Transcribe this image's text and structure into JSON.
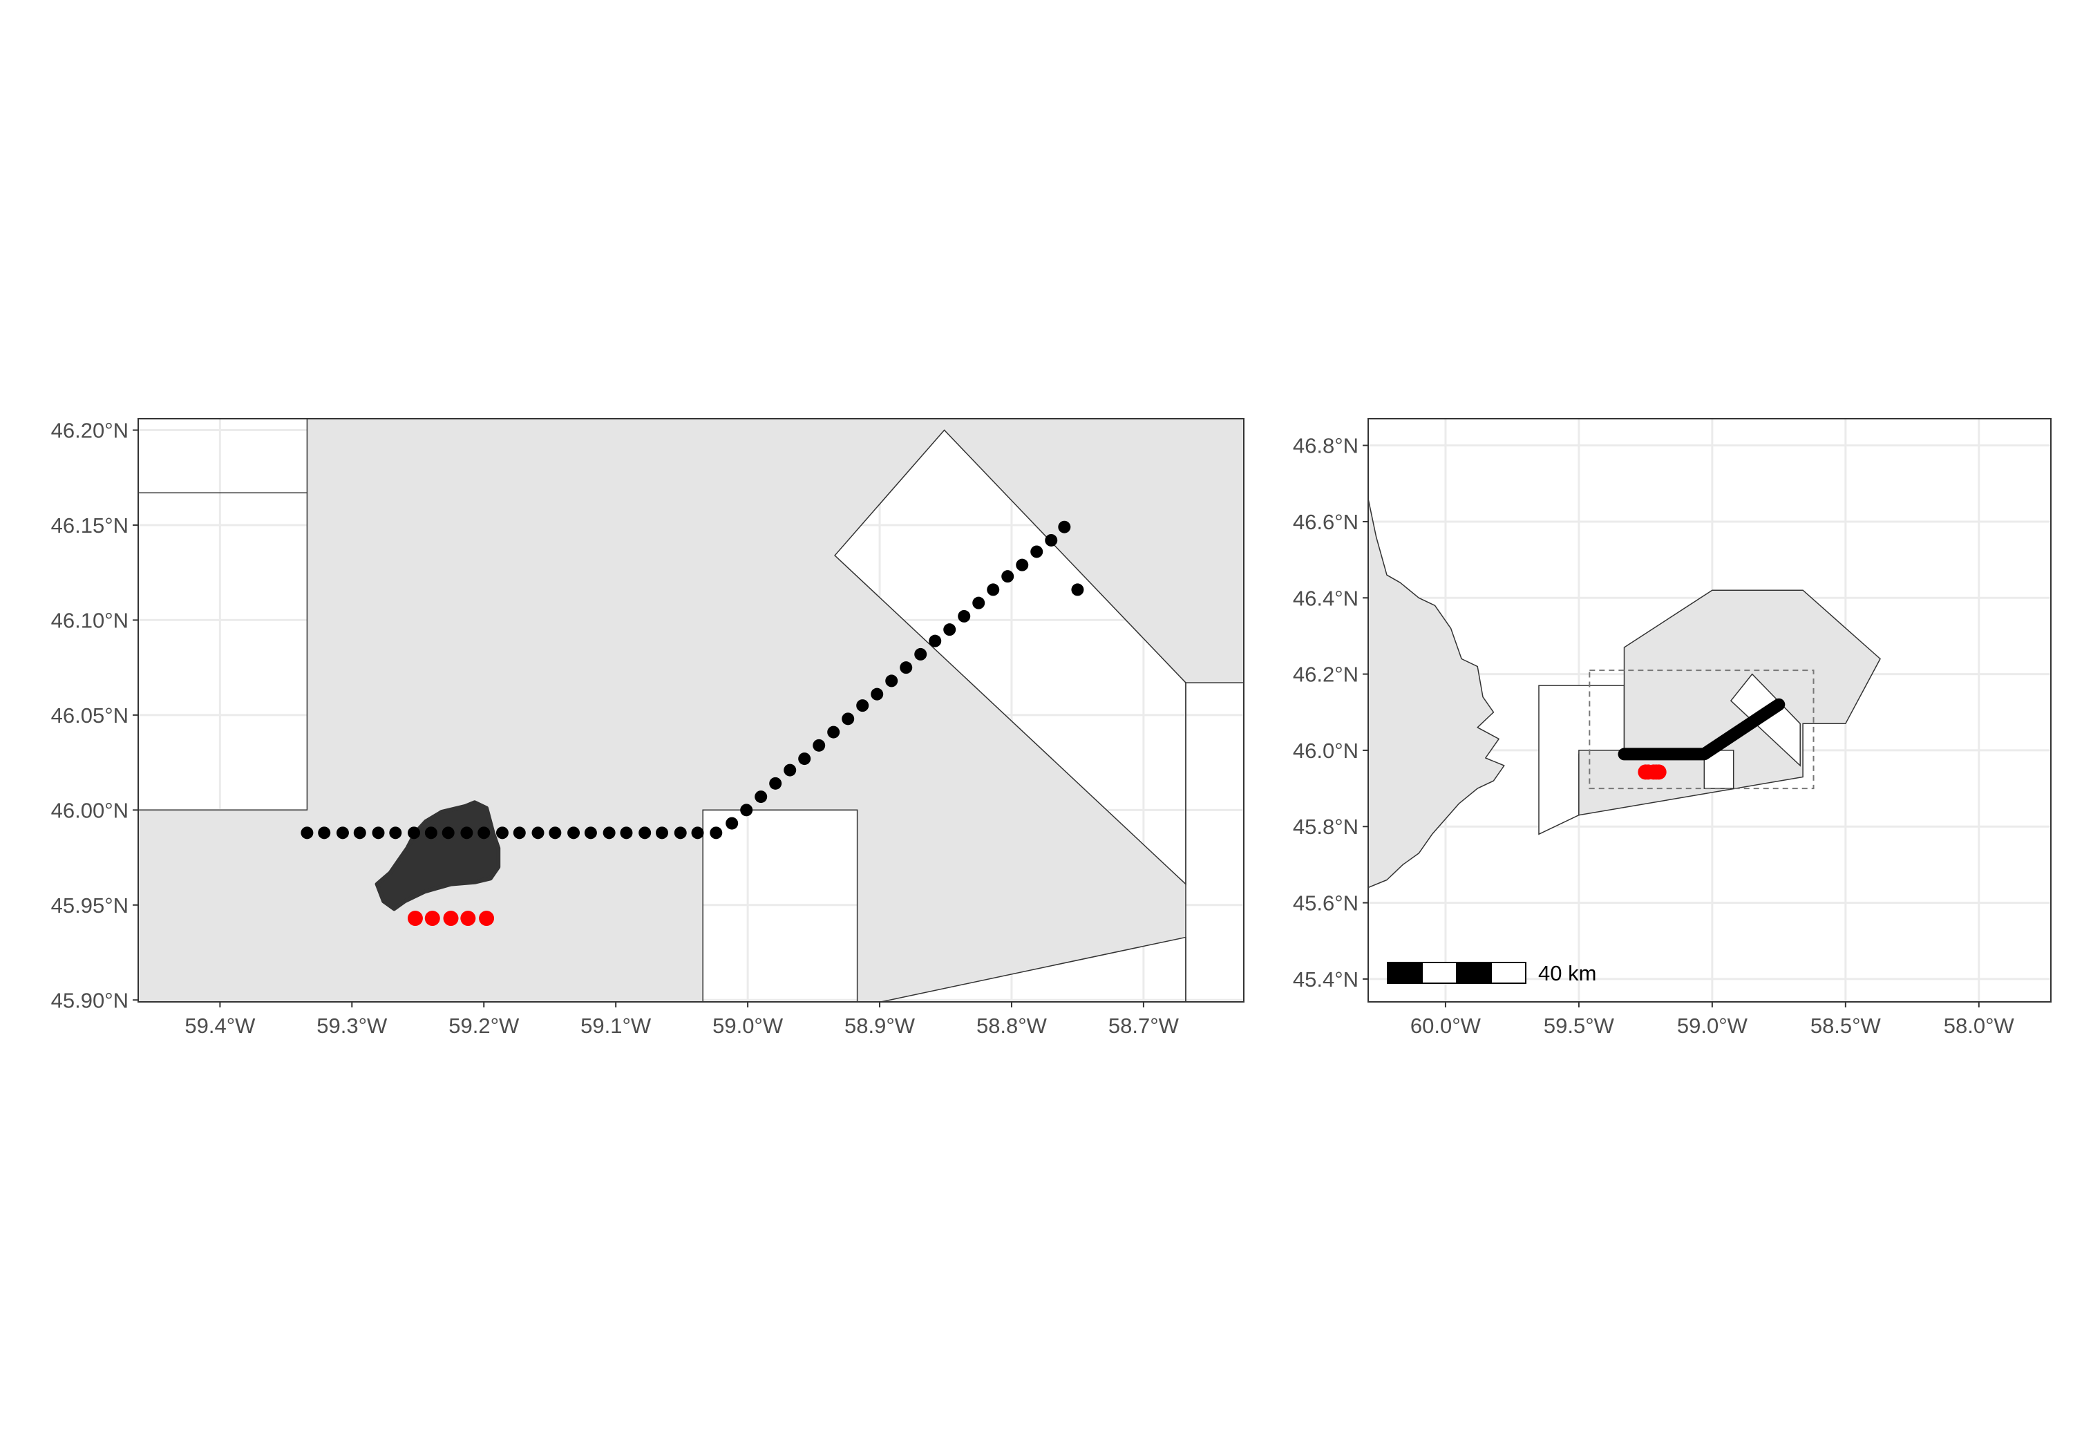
{
  "left_map": {
    "x_tick_labels": [
      "59.4°W",
      "59.3°W",
      "59.2°W",
      "59.1°W",
      "59.0°W",
      "58.9°W",
      "58.8°W",
      "58.7°W"
    ],
    "y_tick_labels": [
      "46.20°N",
      "46.15°N",
      "46.10°N",
      "46.05°N",
      "46.00°N",
      "45.95°N",
      "45.90°N"
    ],
    "lon_range": [
      -59.462,
      -58.624
    ],
    "lat_range": [
      45.899,
      46.206
    ],
    "x_ticks": [
      -59.4,
      -59.3,
      -59.2,
      -59.1,
      -59.0,
      -58.9,
      -58.8,
      -58.7
    ],
    "y_ticks": [
      46.2,
      46.15,
      46.1,
      46.05,
      46.0,
      45.95,
      45.9
    ],
    "regions": [
      {
        "name": "shaded-zone",
        "fill": "#e5e5e5",
        "coords": [
          [
            -59.462,
            45.899
          ],
          [
            -59.462,
            46.206
          ],
          [
            -58.624,
            46.206
          ],
          [
            -58.624,
            45.899
          ]
        ]
      },
      {
        "name": "white-block-nw-upper",
        "fill": "#ffffff",
        "coords": [
          [
            -59.462,
            46.206
          ],
          [
            -59.334,
            46.206
          ],
          [
            -59.334,
            46.167
          ],
          [
            -59.462,
            46.167
          ]
        ]
      },
      {
        "name": "white-block-nw-lower",
        "fill": "#ffffff",
        "coords": [
          [
            -59.462,
            46.167
          ],
          [
            -59.334,
            46.167
          ],
          [
            -59.334,
            46.0
          ],
          [
            -59.462,
            46.0
          ]
        ]
      },
      {
        "name": "white-block-south",
        "fill": "#ffffff",
        "coords": [
          [
            -59.034,
            46.0
          ],
          [
            -58.917,
            46.0
          ],
          [
            -58.917,
            45.899
          ],
          [
            -59.034,
            45.899
          ]
        ]
      },
      {
        "name": "white-diamond",
        "fill": "#ffffff",
        "coords": [
          [
            -58.851,
            46.2
          ],
          [
            -58.668,
            46.067
          ],
          [
            -58.668,
            45.961
          ],
          [
            -58.934,
            46.134
          ]
        ]
      },
      {
        "name": "white-block-east",
        "fill": "#ffffff",
        "coords": [
          [
            -58.668,
            46.067
          ],
          [
            -58.624,
            46.067
          ],
          [
            -58.624,
            45.899
          ],
          [
            -58.668,
            45.899
          ]
        ]
      },
      {
        "name": "white-wedge-southeast",
        "fill": "#ffffff",
        "coords": [
          [
            -58.899,
            45.899
          ],
          [
            -58.668,
            45.933
          ],
          [
            -58.668,
            45.899
          ]
        ]
      }
    ],
    "blob": {
      "fill": "#333333",
      "coords": [
        [
          -59.207,
          46.004
        ],
        [
          -59.198,
          46.001
        ],
        [
          -59.193,
          45.988
        ],
        [
          -59.189,
          45.98
        ],
        [
          -59.189,
          45.97
        ],
        [
          -59.195,
          45.964
        ],
        [
          -59.207,
          45.962
        ],
        [
          -59.225,
          45.961
        ],
        [
          -59.245,
          45.957
        ],
        [
          -59.26,
          45.952
        ],
        [
          -59.268,
          45.948
        ],
        [
          -59.276,
          45.952
        ],
        [
          -59.281,
          45.961
        ],
        [
          -59.271,
          45.967
        ],
        [
          -59.265,
          45.973
        ],
        [
          -59.258,
          45.98
        ],
        [
          -59.252,
          45.988
        ],
        [
          -59.244,
          45.994
        ],
        [
          -59.232,
          45.999
        ],
        [
          -59.214,
          46.002
        ]
      ]
    },
    "track": {
      "color": "#000000",
      "points": [
        [
          -59.334,
          45.988
        ],
        [
          -59.321,
          45.988
        ],
        [
          -59.307,
          45.988
        ],
        [
          -59.294,
          45.988
        ],
        [
          -59.28,
          45.988
        ],
        [
          -59.267,
          45.988
        ],
        [
          -59.253,
          45.988
        ],
        [
          -59.24,
          45.988
        ],
        [
          -59.227,
          45.988
        ],
        [
          -59.213,
          45.988
        ],
        [
          -59.2,
          45.988
        ],
        [
          -59.186,
          45.988
        ],
        [
          -59.173,
          45.988
        ],
        [
          -59.159,
          45.988
        ],
        [
          -59.146,
          45.988
        ],
        [
          -59.132,
          45.988
        ],
        [
          -59.119,
          45.988
        ],
        [
          -59.105,
          45.988
        ],
        [
          -59.092,
          45.988
        ],
        [
          -59.078,
          45.988
        ],
        [
          -59.065,
          45.988
        ],
        [
          -59.051,
          45.988
        ],
        [
          -59.038,
          45.988
        ],
        [
          -59.024,
          45.988
        ],
        [
          -59.012,
          45.993
        ],
        [
          -59.001,
          46.0
        ],
        [
          -58.99,
          46.007
        ],
        [
          -58.979,
          46.014
        ],
        [
          -58.968,
          46.021
        ],
        [
          -58.957,
          46.027
        ],
        [
          -58.946,
          46.034
        ],
        [
          -58.935,
          46.041
        ],
        [
          -58.924,
          46.048
        ],
        [
          -58.913,
          46.055
        ],
        [
          -58.902,
          46.061
        ],
        [
          -58.891,
          46.068
        ],
        [
          -58.88,
          46.075
        ],
        [
          -58.869,
          46.082
        ],
        [
          -58.858,
          46.089
        ],
        [
          -58.847,
          46.095
        ],
        [
          -58.836,
          46.102
        ],
        [
          -58.825,
          46.109
        ],
        [
          -58.814,
          46.116
        ],
        [
          -58.803,
          46.123
        ],
        [
          -58.792,
          46.129
        ],
        [
          -58.781,
          46.136
        ],
        [
          -58.77,
          46.142
        ],
        [
          -58.76,
          46.149
        ],
        [
          -58.75,
          46.116
        ]
      ]
    },
    "red_points": {
      "color": "#ff0000",
      "points": [
        [
          -59.252,
          45.943
        ],
        [
          -59.239,
          45.943
        ],
        [
          -59.225,
          45.943
        ],
        [
          -59.212,
          45.943
        ],
        [
          -59.198,
          45.943
        ]
      ]
    }
  },
  "right_map": {
    "x_tick_labels": [
      "60.0°W",
      "59.5°W",
      "59.0°W",
      "58.5°W",
      "58.0°W"
    ],
    "y_tick_labels": [
      "46.8°N",
      "46.6°N",
      "46.4°N",
      "46.2°N",
      "46.0°N",
      "45.8°N",
      "45.6°N",
      "45.4°N"
    ],
    "lon_range": [
      -60.29,
      -57.73
    ],
    "lat_range": [
      45.34,
      46.87
    ],
    "x_ticks": [
      -60.0,
      -59.5,
      -59.0,
      -58.5,
      -58.0
    ],
    "y_ticks": [
      46.8,
      46.6,
      46.4,
      46.2,
      46.0,
      45.8,
      45.6,
      45.4
    ],
    "land": {
      "fill": "#e5e5e5",
      "coords": [
        [
          -60.29,
          46.66
        ],
        [
          -60.26,
          46.56
        ],
        [
          -60.22,
          46.46
        ],
        [
          -60.17,
          46.44
        ],
        [
          -60.1,
          46.4
        ],
        [
          -60.04,
          46.38
        ],
        [
          -59.98,
          46.32
        ],
        [
          -59.94,
          46.24
        ],
        [
          -59.88,
          46.22
        ],
        [
          -59.86,
          46.14
        ],
        [
          -59.82,
          46.1
        ],
        [
          -59.88,
          46.06
        ],
        [
          -59.8,
          46.03
        ],
        [
          -59.85,
          45.98
        ],
        [
          -59.78,
          45.96
        ],
        [
          -59.82,
          45.92
        ],
        [
          -59.88,
          45.9
        ],
        [
          -59.95,
          45.86
        ],
        [
          -60.0,
          45.82
        ],
        [
          -60.05,
          45.78
        ],
        [
          -60.1,
          45.73
        ],
        [
          -60.16,
          45.7
        ],
        [
          -60.22,
          45.66
        ],
        [
          -60.29,
          45.64
        ]
      ]
    },
    "zones": [
      {
        "name": "zone-west",
        "fill": "#ffffff",
        "coords": [
          [
            -59.65,
            46.17
          ],
          [
            -59.33,
            46.17
          ],
          [
            -59.33,
            45.99
          ],
          [
            -59.5,
            45.99
          ],
          [
            -59.5,
            45.83
          ],
          [
            -59.65,
            45.78
          ]
        ]
      },
      {
        "name": "zone-big",
        "fill": "#e5e5e5",
        "coords": [
          [
            -59.33,
            46.27
          ],
          [
            -59.0,
            46.42
          ],
          [
            -58.66,
            46.42
          ],
          [
            -58.37,
            46.24
          ],
          [
            -58.5,
            46.07
          ],
          [
            -58.66,
            46.07
          ],
          [
            -58.66,
            45.93
          ],
          [
            -59.5,
            45.83
          ],
          [
            -59.5,
            46.0
          ],
          [
            -59.33,
            46.0
          ]
        ]
      },
      {
        "name": "zone-diamond",
        "fill": "#ffffff",
        "coords": [
          [
            -58.85,
            46.2
          ],
          [
            -58.67,
            46.07
          ],
          [
            -58.67,
            45.96
          ],
          [
            -58.93,
            46.13
          ]
        ]
      },
      {
        "name": "zone-south-block",
        "fill": "#ffffff",
        "coords": [
          [
            -59.03,
            46.0
          ],
          [
            -58.92,
            46.0
          ],
          [
            -58.92,
            45.9
          ],
          [
            -59.03,
            45.9
          ]
        ]
      }
    ],
    "extent_box": {
      "coords": [
        -59.46,
        45.9,
        -58.62,
        46.21
      ],
      "color": "#777777"
    },
    "track": {
      "color": "#000000",
      "points": [
        [
          -59.33,
          45.99
        ],
        [
          -59.03,
          45.99
        ],
        [
          -58.75,
          46.12
        ]
      ]
    },
    "red_points": {
      "color": "#ff0000",
      "points": [
        [
          -59.25,
          45.943
        ],
        [
          -59.24,
          45.943
        ],
        [
          -59.22,
          45.943
        ],
        [
          -59.21,
          45.943
        ],
        [
          -59.2,
          45.943
        ]
      ]
    },
    "scale_bar_label": "40 km"
  },
  "colors": {
    "panel_border": "#333333",
    "grid": "#ebebeb",
    "panel_background": "#ffffff",
    "tick_text": "#4d4d4d"
  }
}
